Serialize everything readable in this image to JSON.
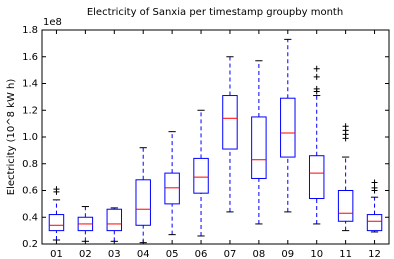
{
  "chart_data": {
    "type": "box",
    "title": "Electricity of Sanxia per timestamp groupby month",
    "y_label": "Electricity (10^8 kW h)",
    "offset_text": "1e8",
    "categories": [
      "01",
      "02",
      "03",
      "04",
      "05",
      "06",
      "07",
      "08",
      "09",
      "10",
      "11",
      "12"
    ],
    "boxes": [
      {
        "min": 0.23,
        "q1": 0.3,
        "median": 0.34,
        "q3": 0.42,
        "max": 0.53,
        "fliers": [
          0.59,
          0.61
        ]
      },
      {
        "min": 0.22,
        "q1": 0.3,
        "median": 0.35,
        "q3": 0.4,
        "max": 0.48,
        "fliers": []
      },
      {
        "min": 0.22,
        "q1": 0.3,
        "median": 0.35,
        "q3": 0.46,
        "max": 0.47,
        "fliers": []
      },
      {
        "min": 0.21,
        "q1": 0.34,
        "median": 0.46,
        "q3": 0.68,
        "max": 0.92,
        "fliers": []
      },
      {
        "min": 0.27,
        "q1": 0.5,
        "median": 0.62,
        "q3": 0.73,
        "max": 1.04,
        "fliers": []
      },
      {
        "min": 0.26,
        "q1": 0.58,
        "median": 0.7,
        "q3": 0.84,
        "max": 1.2,
        "fliers": []
      },
      {
        "min": 0.44,
        "q1": 0.91,
        "median": 1.14,
        "q3": 1.31,
        "max": 1.6,
        "fliers": []
      },
      {
        "min": 0.35,
        "q1": 0.69,
        "median": 0.83,
        "q3": 1.15,
        "max": 1.57,
        "fliers": []
      },
      {
        "min": 0.44,
        "q1": 0.85,
        "median": 1.03,
        "q3": 1.29,
        "max": 1.73,
        "fliers": []
      },
      {
        "min": 0.35,
        "q1": 0.54,
        "median": 0.73,
        "q3": 0.86,
        "max": 1.31,
        "fliers": [
          1.34,
          1.36,
          1.45,
          1.51
        ]
      },
      {
        "min": 0.3,
        "q1": 0.37,
        "median": 0.43,
        "q3": 0.6,
        "max": 0.85,
        "fliers": [
          0.99,
          1.02,
          1.05,
          1.08
        ]
      },
      {
        "min": 0.29,
        "q1": 0.3,
        "median": 0.37,
        "q3": 0.42,
        "max": 0.55,
        "fliers": [
          0.6,
          0.62,
          0.66
        ]
      }
    ],
    "box_color": "#0000ff",
    "median_color": "#ff0000",
    "flier_color": "#000000",
    "ylim": [
      0.2,
      1.8
    ],
    "yticks": [
      0.2,
      0.4,
      0.6,
      0.8,
      {
        "value": 1,
        "label": "1.0"
      },
      1.2,
      1.4,
      1.6,
      1.8
    ]
  }
}
